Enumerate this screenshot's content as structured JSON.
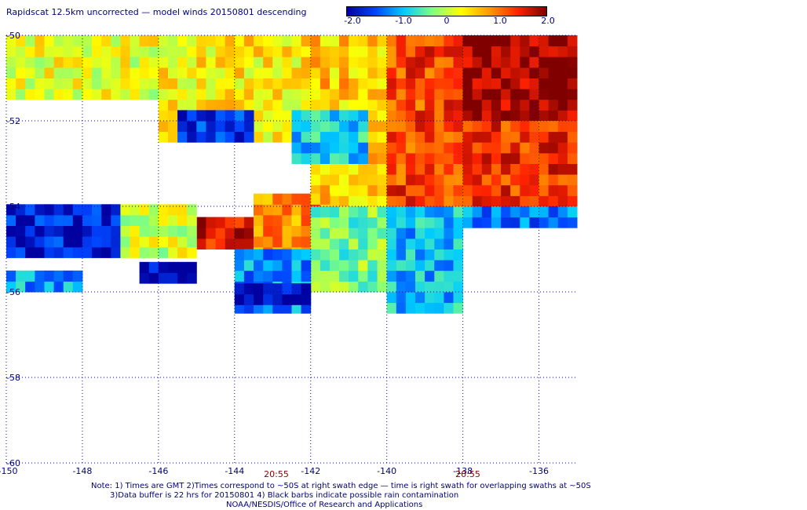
{
  "title": "Rapidscat 12.5km uncorrected — model winds 20150801 descending",
  "colorbar": {
    "labels": [
      "-2.0",
      "-1.0",
      "0",
      "1.0",
      "2.0"
    ],
    "values": [
      -2.0,
      -1.0,
      0,
      1.0,
      2.0
    ],
    "min": -2.0,
    "max": 2.0,
    "colors": [
      "#0000a0",
      "#0044ff",
      "#00ccff",
      "#80ff80",
      "#ffff00",
      "#ff9900",
      "#ff2200",
      "#800000"
    ]
  },
  "map": {
    "lon_range": [
      -150,
      -135
    ],
    "lat_range": [
      -60,
      -50
    ],
    "lon_ticks": [
      -150,
      -148,
      -146,
      -144,
      -142,
      -140,
      -138,
      -136
    ],
    "lon_tick_labels": [
      "-150",
      "-148",
      "-146",
      "-144",
      "-142",
      "-140",
      "-138",
      "-136"
    ],
    "lat_ticks": [
      -50,
      -52,
      -54,
      -56,
      -58,
      -60
    ],
    "lat_tick_labels": [
      "-50",
      "-52",
      "-54",
      "-56",
      "-58",
      "-60"
    ],
    "grid_color": "#0000c0",
    "times": [
      {
        "label": "20:55",
        "lon": -142.5
      },
      {
        "label": "20:55",
        "lon": -137.9
      }
    ]
  },
  "chart_data": {
    "type": "heatmap",
    "title": "Rapidscat 12.5km uncorrected — model winds 20150801 descending",
    "x_range": [
      -150,
      -135
    ],
    "y_range": [
      -60,
      -50
    ],
    "value_range": [
      -2.0,
      2.0
    ],
    "grid": true,
    "regions": [
      {
        "lon": [
          -150,
          -146
        ],
        "lat": [
          -51.5,
          -50
        ],
        "value": 0.2
      },
      {
        "lon": [
          -146,
          -142
        ],
        "lat": [
          -52.5,
          -50
        ],
        "value": 0.4
      },
      {
        "lon": [
          -145.5,
          -143.5
        ],
        "lat": [
          -52.5,
          -51.8
        ],
        "value": -1.6
      },
      {
        "lon": [
          -142,
          -140
        ],
        "lat": [
          -54,
          -50
        ],
        "value": 0.6
      },
      {
        "lon": [
          -142.5,
          -140.5
        ],
        "lat": [
          -53,
          -51.8
        ],
        "value": -0.8
      },
      {
        "lon": [
          -140,
          -138
        ],
        "lat": [
          -54,
          -50
        ],
        "value": 1.3
      },
      {
        "lon": [
          -138,
          -135
        ],
        "lat": [
          -52,
          -50
        ],
        "value": 1.9
      },
      {
        "lon": [
          -138,
          -135
        ],
        "lat": [
          -54,
          -52
        ],
        "value": 1.4
      },
      {
        "lon": [
          -145,
          -143.5
        ],
        "lat": [
          -55,
          -54.3
        ],
        "value": 1.6
      },
      {
        "lon": [
          -143.5,
          -141.5
        ],
        "lat": [
          -55.2,
          -53.8
        ],
        "value": 0.9
      },
      {
        "lon": [
          -150,
          -147
        ],
        "lat": [
          -55.2,
          -54
        ],
        "value": -1.7
      },
      {
        "lon": [
          -147,
          -145
        ],
        "lat": [
          -55.2,
          -54
        ],
        "value": 0.1
      },
      {
        "lon": [
          -142,
          -140
        ],
        "lat": [
          -56,
          -54
        ],
        "value": -0.3
      },
      {
        "lon": [
          -140,
          -138
        ],
        "lat": [
          -56.5,
          -54
        ],
        "value": -0.9
      },
      {
        "lon": [
          -138,
          -135
        ],
        "lat": [
          -54.5,
          -54
        ],
        "value": -1.2
      },
      {
        "lon": [
          -144,
          -142
        ],
        "lat": [
          -56.5,
          -55
        ],
        "value": -1.1
      },
      {
        "lon": [
          -150,
          -148
        ],
        "lat": [
          -56,
          -55.5
        ],
        "value": -1.0
      },
      {
        "lon": [
          -146.5,
          -145
        ],
        "lat": [
          -55.8,
          -55.4
        ],
        "value": -1.9
      },
      {
        "lon": [
          -144,
          -142
        ],
        "lat": [
          -56.3,
          -55.8
        ],
        "value": -1.9
      }
    ]
  },
  "notes": [
    "Note: 1) Times are GMT 2)Times correspond to ~50S at right swath edge — time is right swath for overlapping swaths at ~50S",
    "3)Data buffer is 22 hrs for 20150801 4) Black barbs indicate possible rain contamination",
    "NOAA/NESDIS/Office of Research and Applications"
  ]
}
